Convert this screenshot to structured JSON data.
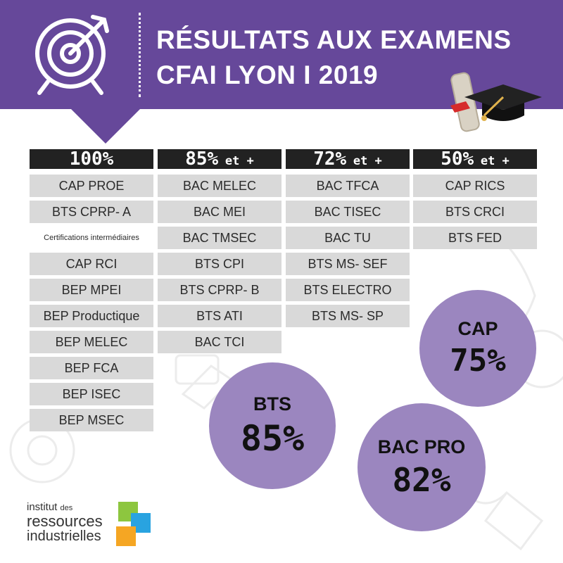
{
  "header": {
    "title_line1": "RÉSULTATS AUX EXAMENS",
    "title_line2": "CFAI LYON I 2019",
    "color": "#66489a"
  },
  "columns": [
    {
      "pct": "100%",
      "suffix": "",
      "items": [
        "CAP PROE",
        "BTS CPRP- A",
        "Certifications intermédiaires",
        "CAP RCI",
        "BEP MPEI",
        "BEP Productique",
        "BEP MELEC",
        "BEP FCA",
        "BEP ISEC",
        "BEP MSEC"
      ]
    },
    {
      "pct": "85%",
      "suffix": "et +",
      "items": [
        "BAC MELEC",
        "BAC MEI",
        "BAC TMSEC",
        "BTS CPI",
        "BTS CPRP- B",
        "BTS ATI",
        "BAC TCI"
      ]
    },
    {
      "pct": "72%",
      "suffix": "et +",
      "items": [
        "BAC TFCA",
        "BAC TISEC",
        "BAC TU",
        "BTS MS- SEF",
        "BTS ELECTRO",
        "BTS MS- SP"
      ]
    },
    {
      "pct": "50%",
      "suffix": "et +",
      "items": [
        "CAP RICS",
        "BTS CRCI",
        "BTS FED"
      ]
    }
  ],
  "circles": {
    "bts": {
      "label": "BTS",
      "value": "85%"
    },
    "cap": {
      "label": "CAP",
      "value": "75%"
    },
    "bac": {
      "label": "BAC PRO",
      "value": "82%"
    },
    "color": "#9b86bf"
  },
  "logo": {
    "line1a": "institut",
    "line1b": "des",
    "line2": "ressources",
    "line3": "industrielles",
    "colors": [
      "#8dc63f",
      "#29a3e0",
      "#f5a623"
    ]
  },
  "icons": {
    "target": "target-icon",
    "graduation": "graduation-cap-icon"
  }
}
